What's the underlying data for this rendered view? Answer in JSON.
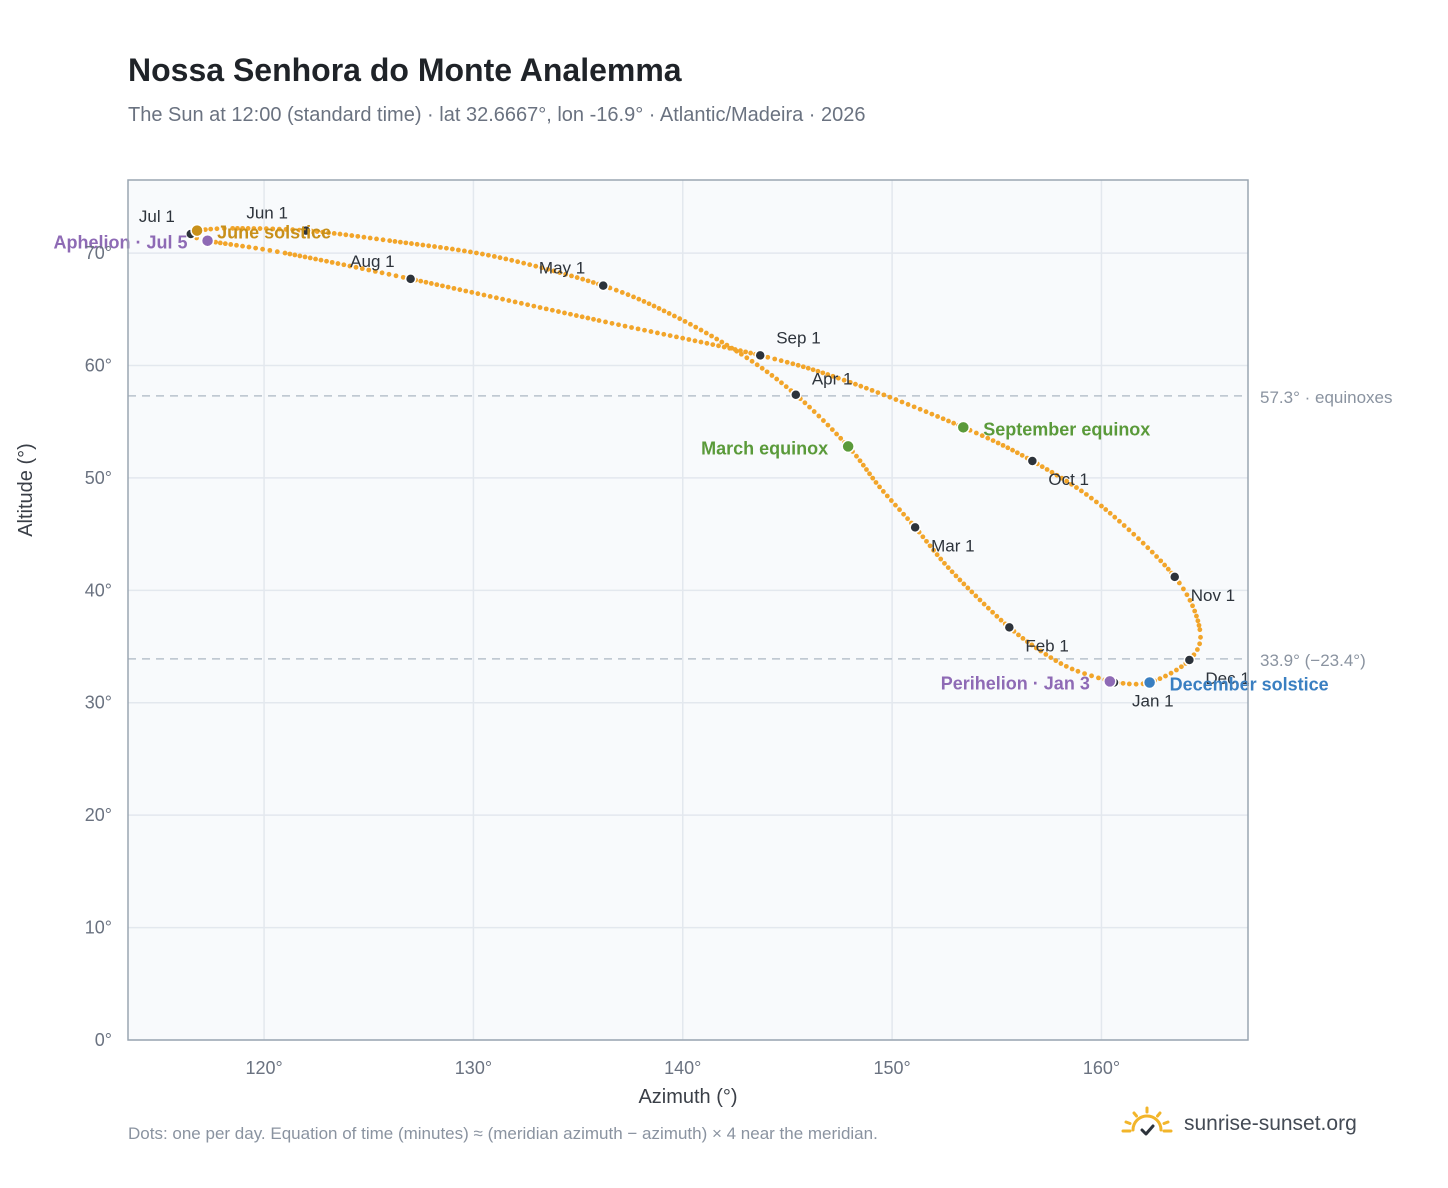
{
  "header": {
    "title": "Nossa Senhora do Monte Analemma",
    "subtitle": "The Sun at 12:00 (standard time) · lat 32.6667°, lon -16.9° · Atlantic/Madeira · 2026"
  },
  "footer": {
    "note": "Dots: one per day. Equation of time (minutes) ≈ (meridian azimuth − azimuth) × 4 near the meridian.",
    "brand": "sunrise-sunset.org",
    "brand_icon": "sun-icon"
  },
  "colors": {
    "curve": "#f2a52a",
    "marker": "#2d333b",
    "equinox": "#5a9a3a",
    "june_solstice": "#c8901a",
    "december_solstice": "#3a7fc1",
    "apsis": "#8e6ab5",
    "grid": "#e3e8ee",
    "reference": "#b8c2cc",
    "plot_bg": "#f8fafc",
    "frame": "#9aa6b2"
  },
  "chart_data": {
    "type": "scatter",
    "title": "Nossa Senhora do Monte Analemma",
    "xlabel": "Azimuth (°)",
    "ylabel": "Altitude (°)",
    "xlim": [
      113.5,
      167.0
    ],
    "ylim": [
      0,
      76.5
    ],
    "xticks": [
      120,
      130,
      140,
      150,
      160
    ],
    "yticks": [
      0,
      10,
      20,
      30,
      40,
      50,
      60,
      70
    ],
    "x_tick_labels": [
      "120°",
      "130°",
      "140°",
      "150°",
      "160°"
    ],
    "y_tick_labels": [
      "0°",
      "10°",
      "20°",
      "30°",
      "40°",
      "50°",
      "60°",
      "70°"
    ],
    "grid": true,
    "month_markers": [
      {
        "label": "Jan 1",
        "azimuth": 160.6,
        "altitude": 31.8
      },
      {
        "label": "Feb 1",
        "azimuth": 155.6,
        "altitude": 36.7
      },
      {
        "label": "Mar 1",
        "azimuth": 151.1,
        "altitude": 45.6
      },
      {
        "label": "Apr 1",
        "azimuth": 145.4,
        "altitude": 57.4
      },
      {
        "label": "May 1",
        "azimuth": 136.2,
        "altitude": 67.1
      },
      {
        "label": "Jun 1",
        "azimuth": 122.0,
        "altitude": 72.0
      },
      {
        "label": "Jul 1",
        "azimuth": 116.5,
        "altitude": 71.7
      },
      {
        "label": "Aug 1",
        "azimuth": 127.0,
        "altitude": 67.7
      },
      {
        "label": "Sep 1",
        "azimuth": 143.7,
        "altitude": 60.9
      },
      {
        "label": "Oct 1",
        "azimuth": 156.7,
        "altitude": 51.5
      },
      {
        "label": "Nov 1",
        "azimuth": 163.5,
        "altitude": 41.2
      },
      {
        "label": "Dec 1",
        "azimuth": 164.2,
        "altitude": 33.8
      }
    ],
    "events": [
      {
        "label": "March equinox",
        "azimuth": 147.9,
        "altitude": 52.8,
        "color": "#5a9a3a"
      },
      {
        "label": "June solstice",
        "azimuth": 116.8,
        "altitude": 72.0,
        "color": "#c8901a"
      },
      {
        "label": "September equinox",
        "azimuth": 153.4,
        "altitude": 54.5,
        "color": "#5a9a3a"
      },
      {
        "label": "December solstice",
        "azimuth": 162.3,
        "altitude": 31.8,
        "color": "#3a7fc1"
      },
      {
        "label": "Perihelion · Jan 3",
        "azimuth": 160.4,
        "altitude": 31.9,
        "color": "#8e6ab5"
      },
      {
        "label": "Aphelion · Jul 5",
        "azimuth": 117.3,
        "altitude": 71.1,
        "color": "#8e6ab5"
      }
    ],
    "reference_lines": [
      {
        "label": "57.3° · equinoxes",
        "altitude": 57.3
      },
      {
        "label": "33.9° (−23.4°)",
        "altitude": 33.9
      }
    ],
    "daily_path": [
      [
        160.6,
        31.8
      ],
      [
        158.6,
        33.0
      ],
      [
        157.1,
        34.6
      ],
      [
        155.6,
        36.7
      ],
      [
        154.0,
        39.5
      ],
      [
        152.5,
        42.4
      ],
      [
        151.1,
        45.6
      ],
      [
        149.4,
        49.2
      ],
      [
        147.9,
        52.8
      ],
      [
        145.4,
        57.4
      ],
      [
        142.8,
        61.0
      ],
      [
        139.6,
        64.4
      ],
      [
        136.2,
        67.1
      ],
      [
        131.0,
        69.7
      ],
      [
        126.0,
        71.1
      ],
      [
        122.0,
        72.0
      ],
      [
        118.5,
        72.2
      ],
      [
        116.8,
        72.0
      ],
      [
        116.5,
        71.7
      ],
      [
        117.3,
        71.1
      ],
      [
        121.0,
        70.0
      ],
      [
        127.0,
        67.7
      ],
      [
        136.0,
        64.0
      ],
      [
        143.7,
        60.9
      ],
      [
        148.0,
        58.5
      ],
      [
        153.4,
        54.5
      ],
      [
        156.7,
        51.5
      ],
      [
        160.0,
        47.5
      ],
      [
        163.5,
        41.2
      ],
      [
        164.7,
        36.5
      ],
      [
        164.2,
        33.8
      ],
      [
        162.3,
        31.8
      ],
      [
        160.6,
        31.8
      ]
    ]
  }
}
